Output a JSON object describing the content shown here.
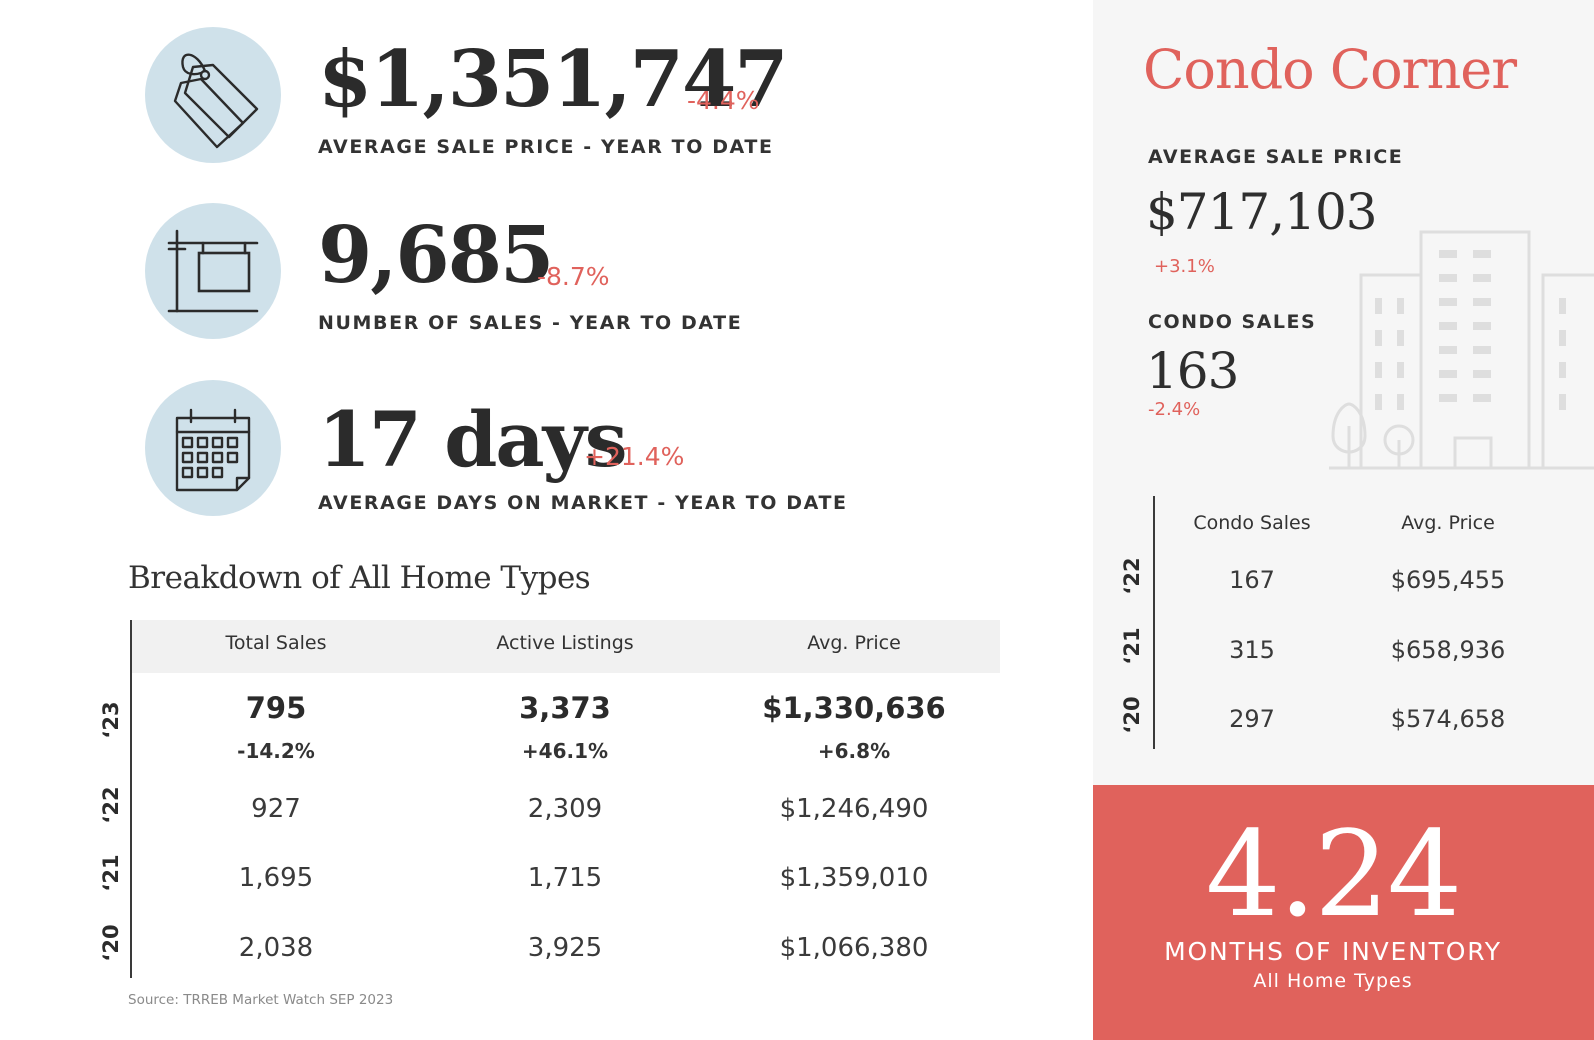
{
  "stats": [
    {
      "value": "$1,351,747",
      "change": "-4.4%",
      "label": "AVERAGE SALE PRICE - YEAR TO DATE",
      "icon": "price-tag-icon"
    },
    {
      "value": "9,685",
      "change": "-8.7%",
      "label": "NUMBER OF SALES - YEAR TO DATE",
      "icon": "sale-sign-icon"
    },
    {
      "value": "17 days",
      "change": "+21.4%",
      "label": "AVERAGE DAYS ON MARKET - YEAR TO DATE",
      "icon": "calendar-icon"
    }
  ],
  "breakdown": {
    "title": "Breakdown of All Home Types",
    "columns": [
      "Total Sales",
      "Active Listings",
      "Avg. Price"
    ],
    "rows": [
      {
        "year": "‘23",
        "values": [
          "795",
          "3,373",
          "$1,330,636"
        ],
        "changes": [
          "-14.2%",
          "+46.1%",
          "+6.8%"
        ]
      },
      {
        "year": "‘22",
        "values": [
          "927",
          "2,309",
          "$1,246,490"
        ]
      },
      {
        "year": "‘21",
        "values": [
          "1,695",
          "1,715",
          "$1,359,010"
        ]
      },
      {
        "year": "‘20",
        "values": [
          "2,038",
          "3,925",
          "$1,066,380"
        ]
      }
    ]
  },
  "source": "Source: TRREB Market Watch SEP 2023",
  "condo": {
    "title": "Condo Corner",
    "avg_price_label": "AVERAGE SALE PRICE",
    "avg_price": "$717,103",
    "avg_price_change": "+3.1%",
    "sales_label": "CONDO SALES",
    "sales": "163",
    "sales_change": "-2.4%",
    "columns": [
      "Condo Sales",
      "Avg. Price"
    ],
    "rows": [
      {
        "year": "‘22",
        "values": [
          "167",
          "$695,455"
        ]
      },
      {
        "year": "‘21",
        "values": [
          "315",
          "$658,936"
        ]
      },
      {
        "year": "‘20",
        "values": [
          "297",
          "$574,658"
        ]
      }
    ]
  },
  "inventory": {
    "value": "4.24",
    "label": "MONTHS OF INVENTORY",
    "sublabel": "All Home Types"
  },
  "colors": {
    "accent": "#e0625c",
    "icon_circle": "#cfe1ea",
    "panel_bg": "#f6f6f6"
  }
}
